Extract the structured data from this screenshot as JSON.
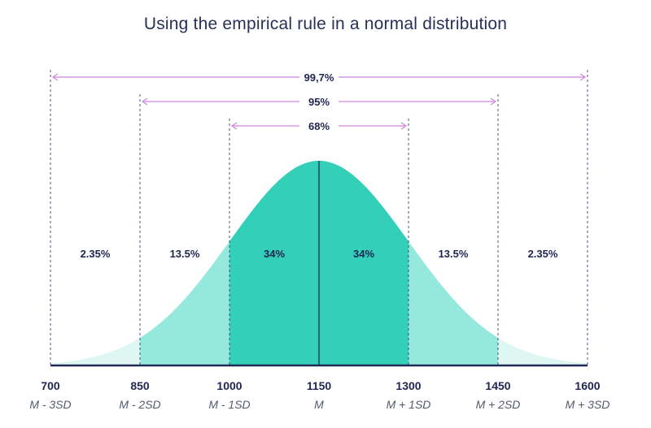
{
  "colors": {
    "title": "#2a2f5a",
    "text_dark": "#1f2550",
    "axis": "#1f2a55",
    "band_outer": "#dff7f2",
    "band_mid": "#94e9dc",
    "band_inner": "#34cfb9",
    "arrow": "#cf86e3",
    "dashed": "#3a4070",
    "sd_label": "#555a6e"
  },
  "chart_data": {
    "type": "area",
    "title": "Using the empirical rule in a normal distribution",
    "mean": 1150,
    "sd": 150,
    "x_range": [
      700,
      1600
    ],
    "tick_values": [
      700,
      850,
      1000,
      1150,
      1300,
      1450,
      1600
    ],
    "tick_labels": [
      "700",
      "850",
      "1000",
      "1150",
      "1300",
      "1450",
      "1600"
    ],
    "sd_labels": [
      "M - 3SD",
      "M - 2SD",
      "M - 1SD",
      "M",
      "M + 1SD",
      "M + 2SD",
      "M + 3SD"
    ],
    "segments": [
      {
        "from": 700,
        "to": 850,
        "percent_label": "2.35%",
        "band": "outer"
      },
      {
        "from": 850,
        "to": 1000,
        "percent_label": "13.5%",
        "band": "mid"
      },
      {
        "from": 1000,
        "to": 1150,
        "percent_label": "34%",
        "band": "inner"
      },
      {
        "from": 1150,
        "to": 1300,
        "percent_label": "34%",
        "band": "inner"
      },
      {
        "from": 1300,
        "to": 1450,
        "percent_label": "13.5%",
        "band": "mid"
      },
      {
        "from": 1450,
        "to": 1600,
        "percent_label": "2.35%",
        "band": "outer"
      }
    ],
    "ranges": [
      {
        "label": "99,7%",
        "from": 700,
        "to": 1600
      },
      {
        "label": "95%",
        "from": 850,
        "to": 1450
      },
      {
        "label": "68%",
        "from": 1000,
        "to": 1300
      }
    ]
  }
}
